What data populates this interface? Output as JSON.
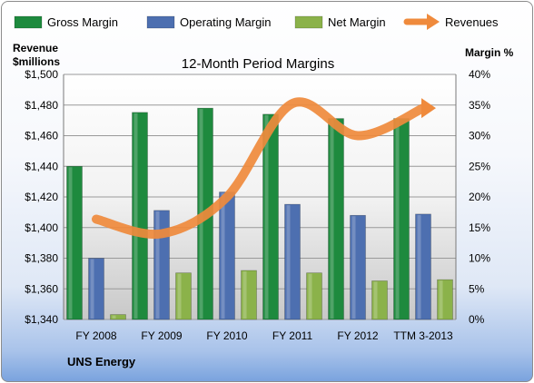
{
  "company": "UNS Energy",
  "colors": {
    "gross": "#1e8a3e",
    "operating": "#4d6fb0",
    "net": "#8bb24a",
    "revenue": "#ef8a3c"
  },
  "chart_data": {
    "type": "bar",
    "title": "12-Month Period Margins",
    "categories": [
      "FY 2008",
      "FY 2009",
      "FY 2010",
      "FY 2011",
      "FY 2012",
      "TTM 3-2013"
    ],
    "series": [
      {
        "name": "Gross Margin",
        "axis": "right",
        "values": [
          25.0,
          33.8,
          34.5,
          33.5,
          32.8,
          32.8
        ]
      },
      {
        "name": "Operating Margin",
        "axis": "right",
        "values": [
          10.0,
          17.8,
          20.8,
          18.8,
          17.0,
          17.2
        ]
      },
      {
        "name": "Net Margin",
        "axis": "right",
        "values": [
          0.8,
          7.6,
          8.0,
          7.6,
          6.3,
          6.5
        ]
      },
      {
        "name": "Revenues",
        "type": "line",
        "axis": "left",
        "values": [
          1405.5,
          1396,
          1420,
          1481,
          1460,
          1478
        ]
      }
    ],
    "y_left": {
      "label_line1": "Revenue",
      "label_line2": "$millions",
      "range": [
        1340,
        1500
      ],
      "ticks": [
        "$1,340",
        "$1,360",
        "$1,380",
        "$1,400",
        "$1,420",
        "$1,440",
        "$1,460",
        "$1,480",
        "$1,500"
      ]
    },
    "y_right": {
      "label": "Margin %",
      "range": [
        0,
        40
      ],
      "ticks": [
        "0%",
        "5%",
        "10%",
        "15%",
        "20%",
        "25%",
        "30%",
        "35%",
        "40%"
      ]
    },
    "grid": true,
    "legend_position": "top"
  }
}
